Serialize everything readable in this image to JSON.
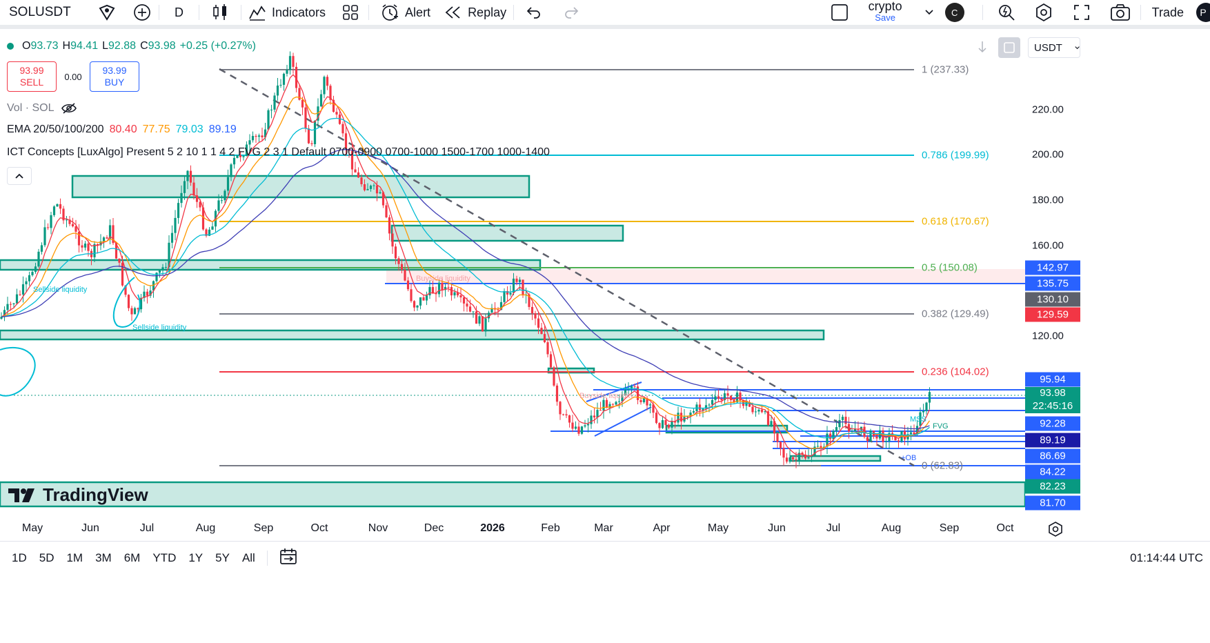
{
  "toolbar": {
    "symbol": "SOLUSDT",
    "interval": "D",
    "indicators": "Indicators",
    "alert": "Alert",
    "replay": "Replay",
    "layout_name": "crypto",
    "layout_save": "Save",
    "avatar_letter": "C",
    "trade": "Trade",
    "profile_letter": "P"
  },
  "legend": {
    "o_label": "O",
    "o": "93.73",
    "h_label": "H",
    "h": "94.41",
    "l_label": "L",
    "l": "92.88",
    "c_label": "C",
    "c": "93.98",
    "change": "+0.25 (+0.27%)",
    "sell_price": "93.99",
    "sell_label": "SELL",
    "spread": "0.00",
    "buy_price": "93.99",
    "buy_label": "BUY",
    "vol": "Vol · SOL",
    "ema_title": "EMA 20/50/100/200",
    "ema_values": [
      "80.40",
      "77.75",
      "79.03",
      "89.19"
    ],
    "ict": "ICT Concepts [LuxAlgo] Present 5 2 10 1 1 4 2 FVG 2 3 1 Default 0700-0900 0700-1000 1500-1700 1000-1400"
  },
  "price_scale": {
    "currency": "USDT",
    "ticks": [
      {
        "v": 220,
        "t": "220.00"
      },
      {
        "v": 200,
        "t": "200.00"
      },
      {
        "v": 180,
        "t": "180.00"
      },
      {
        "v": 160,
        "t": "160.00"
      },
      {
        "v": 120,
        "t": "120.00"
      }
    ],
    "labels": [
      {
        "v": 142.97,
        "t": "142.97",
        "color": "#2962ff"
      },
      {
        "v": 135.75,
        "t": "135.75",
        "color": "#2962ff"
      },
      {
        "v": 130.1,
        "t": "130.10",
        "color": "#5d606b"
      },
      {
        "v": 129.59,
        "t": "129.59",
        "color": "#f23645"
      },
      {
        "v": 95.94,
        "t": "95.94",
        "color": "#2962ff"
      },
      {
        "v": 92.28,
        "t": "92.28",
        "color": "#2962ff"
      },
      {
        "v": 89.19,
        "t": "89.19",
        "color": "#1a1aa6"
      },
      {
        "v": 86.69,
        "t": "86.69",
        "color": "#2962ff"
      },
      {
        "v": 84.22,
        "t": "84.22",
        "color": "#2962ff"
      },
      {
        "v": 82.23,
        "t": "82.23",
        "color": "#089981"
      },
      {
        "v": 81.7,
        "t": "81.70",
        "color": "#2962ff"
      }
    ],
    "current_price": "93.98",
    "countdown": "22:45:16"
  },
  "fib": [
    {
      "t": "1 (237.33)",
      "color": "#787b86"
    },
    {
      "t": "0.786 (199.99)",
      "color": "#00bcd4"
    },
    {
      "t": "0.618 (170.67)",
      "color": "#f0b400"
    },
    {
      "t": "0.5 (150.08)",
      "color": "#4caf50"
    },
    {
      "t": "0.382 (129.49)",
      "color": "#787b86"
    },
    {
      "t": "0.236 (104.02)",
      "color": "#f23645"
    },
    {
      "t": "0 (62.83)",
      "color": "#787b86"
    }
  ],
  "notes": {
    "buyside1": "Buyside liquidity",
    "buyside2": "Buyside liquidity",
    "sellside1": "Sellside liquidity",
    "sellside2": "Sellside liquidity",
    "mss": "MSS",
    "ob": "+OB",
    "fvg": "FVG"
  },
  "brand": "TradingView",
  "time_axis": [
    "May",
    "Jun",
    "Jul",
    "Aug",
    "Sep",
    "Oct",
    "Nov",
    "Dec",
    "2026",
    "Feb",
    "Mar",
    "Apr",
    "May",
    "Jun",
    "Jul",
    "Aug",
    "Sep",
    "Oct"
  ],
  "ranges": [
    "1D",
    "5D",
    "1M",
    "3M",
    "6M",
    "YTD",
    "1Y",
    "5Y",
    "All"
  ],
  "clock": "01:14:44 UTC"
}
